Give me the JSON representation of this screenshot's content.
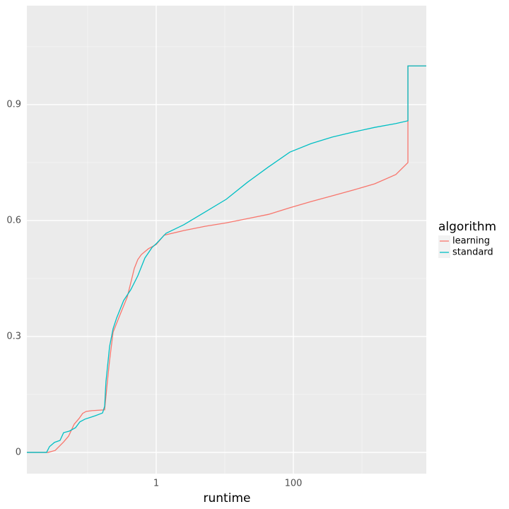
{
  "chart_data": {
    "type": "line",
    "x_label": "runtime",
    "legend_title": "algorithm",
    "xscale": "log",
    "xlim": [
      0.013,
      8670
    ],
    "ylim": [
      -0.055,
      1.156
    ],
    "xticks": [
      1,
      100
    ],
    "yticks": [
      0,
      0.3,
      0.6,
      0.9
    ],
    "grid": true,
    "legend": "right",
    "series": [
      {
        "name": "learning",
        "color": "#f8766d",
        "x": [
          0.013,
          0.0265,
          0.0336,
          0.0446,
          0.0527,
          0.0637,
          0.0752,
          0.0847,
          0.0953,
          0.115,
          0.177,
          0.194,
          0.209,
          0.235,
          0.298,
          0.378,
          0.426,
          0.479,
          0.539,
          0.608,
          0.77,
          1,
          1.3,
          2.52,
          5.15,
          10.5,
          21.4,
          43.6,
          88.8,
          181,
          369,
          752,
          1534,
          3126,
          4680,
          4680,
          8670
        ],
        "values": [
          0,
          0,
          0.005,
          0.027,
          0.042,
          0.073,
          0.088,
          0.101,
          0.106,
          0.108,
          0.11,
          0.183,
          0.238,
          0.311,
          0.357,
          0.402,
          0.439,
          0.476,
          0.499,
          0.512,
          0.527,
          0.538,
          0.562,
          0.574,
          0.585,
          0.594,
          0.605,
          0.616,
          0.633,
          0.649,
          0.664,
          0.679,
          0.695,
          0.719,
          0.75,
          1.0,
          1.0
        ]
      },
      {
        "name": "standard",
        "color": "#00bfc4",
        "x": [
          0.013,
          0.0252,
          0.0278,
          0.0329,
          0.0396,
          0.0446,
          0.054,
          0.0667,
          0.077,
          0.0912,
          0.13,
          0.165,
          0.177,
          0.185,
          0.209,
          0.235,
          0.265,
          0.335,
          0.426,
          0.539,
          0.684,
          0.867,
          1,
          1.39,
          2.52,
          5.15,
          10.5,
          21.4,
          43.6,
          88.8,
          181,
          369,
          752,
          1534,
          3126,
          4680,
          4680,
          8670
        ],
        "values": [
          0,
          0,
          0.015,
          0.026,
          0.031,
          0.051,
          0.055,
          0.064,
          0.079,
          0.086,
          0.095,
          0.102,
          0.119,
          0.183,
          0.274,
          0.32,
          0.348,
          0.393,
          0.421,
          0.457,
          0.503,
          0.53,
          0.54,
          0.567,
          0.589,
          0.622,
          0.655,
          0.699,
          0.739,
          0.777,
          0.799,
          0.816,
          0.829,
          0.841,
          0.851,
          0.858,
          1.0,
          1.0
        ]
      }
    ]
  }
}
